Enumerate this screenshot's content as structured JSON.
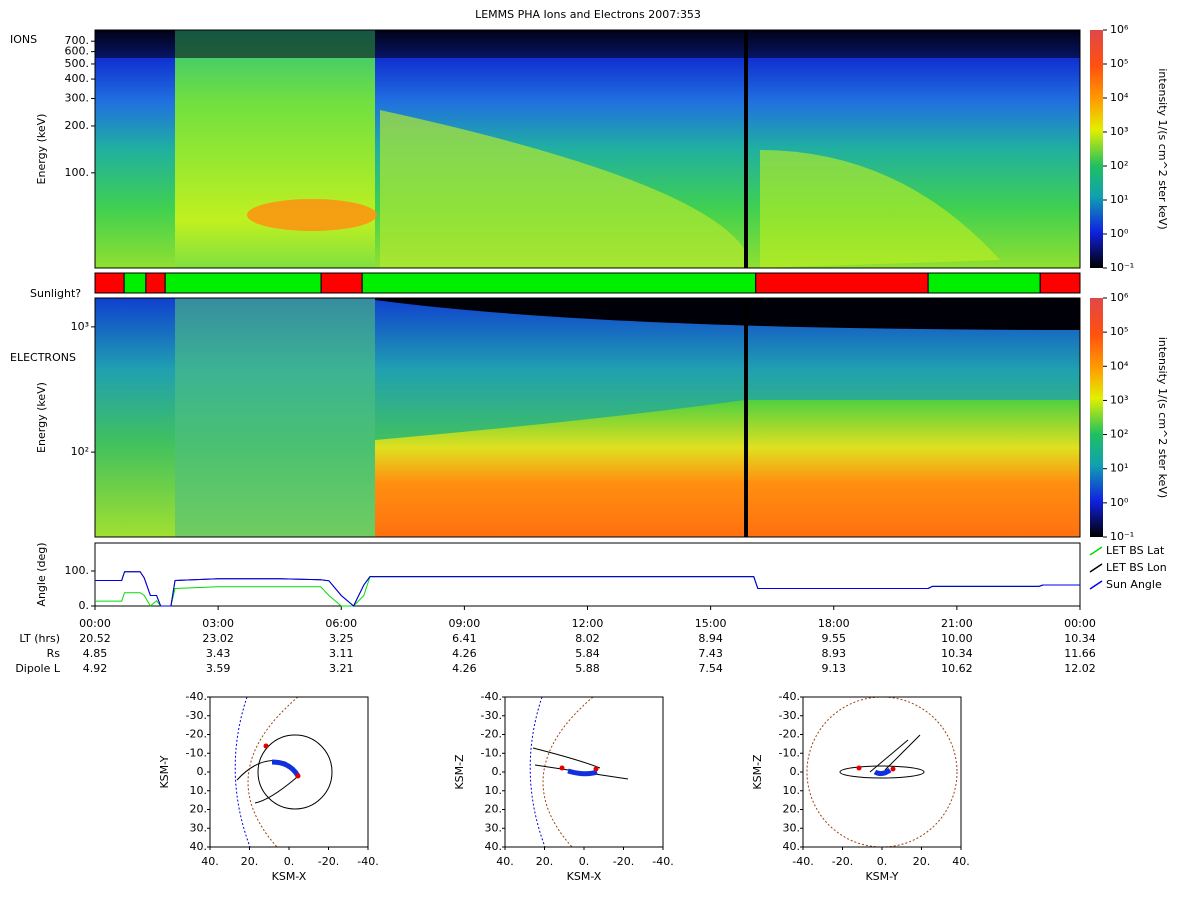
{
  "chart_data": [
    {
      "type": "spectrogram",
      "title": "LEMMS PHA Ions and Electrons  2007:353",
      "label": "IONS",
      "ylabel": "Energy (keV)",
      "log": true,
      "ylim": [
        24.5,
        826
      ],
      "yticks": [
        {
          "value": 100,
          "label": "100."
        },
        {
          "value": 200,
          "label": "200."
        },
        {
          "value": 300,
          "label": "300."
        },
        {
          "value": 400,
          "label": "400."
        },
        {
          "value": 500,
          "label": "500."
        },
        {
          "value": 600,
          "label": "600."
        },
        {
          "value": 700,
          "label": "700."
        }
      ],
      "colorbar": {
        "label": "intensity 1/(s cm^2 ster keV)",
        "log": true,
        "lim": [
          0.1,
          1000000
        ],
        "ticks": [
          {
            "value": 0.1,
            "label": "10⁻¹"
          },
          {
            "value": 1,
            "label": "10⁰"
          },
          {
            "value": 10,
            "label": "10¹"
          },
          {
            "value": 100,
            "label": "10²"
          },
          {
            "value": 1000,
            "label": "10³"
          },
          {
            "value": 10000,
            "label": "10⁴"
          },
          {
            "value": 100000,
            "label": "10⁵"
          },
          {
            "value": 1000000,
            "label": "10⁶"
          }
        ]
      }
    },
    {
      "type": "timebar",
      "label": "Sunlight?",
      "xlim": [
        0,
        24
      ],
      "segments": [
        {
          "start": 0,
          "end": 0.71,
          "color": "#ff0000"
        },
        {
          "start": 0.71,
          "end": 1.24,
          "color": "#00ee00"
        },
        {
          "start": 1.24,
          "end": 1.71,
          "color": "#ff0000"
        },
        {
          "start": 1.71,
          "end": 5.51,
          "color": "#00ee00"
        },
        {
          "start": 5.51,
          "end": 6.51,
          "color": "#ff0000"
        },
        {
          "start": 6.51,
          "end": 16.1,
          "color": "#00ee00"
        },
        {
          "start": 16.1,
          "end": 20.3,
          "color": "#ff0000"
        },
        {
          "start": 20.3,
          "end": 23.03,
          "color": "#00ee00"
        },
        {
          "start": 23.03,
          "end": 24,
          "color": "#ff0000"
        }
      ]
    },
    {
      "type": "spectrogram",
      "label": "ELECTRONS",
      "ylabel": "Energy (keV)",
      "log": true,
      "ylim": [
        21,
        1700
      ],
      "yticks": [
        {
          "value": 100,
          "label": "10²"
        },
        {
          "value": 1000,
          "label": "10³"
        }
      ],
      "colorbar": {
        "label": "intensity 1/(s cm^2 ster keV)",
        "log": true,
        "lim": [
          0.1,
          1000000
        ],
        "ticks": [
          {
            "value": 0.1,
            "label": "10⁻¹"
          },
          {
            "value": 1,
            "label": "10⁰"
          },
          {
            "value": 10,
            "label": "10¹"
          },
          {
            "value": 100,
            "label": "10²"
          },
          {
            "value": 1000,
            "label": "10³"
          },
          {
            "value": 10000,
            "label": "10⁴"
          },
          {
            "value": 100000,
            "label": "10⁵"
          },
          {
            "value": 1000000,
            "label": "10⁶"
          }
        ]
      }
    },
    {
      "type": "line",
      "ylabel": "Angle (deg)",
      "xlim": [
        0,
        24
      ],
      "ylim": [
        0,
        180
      ],
      "yticks": [
        {
          "value": 0,
          "label": "0."
        },
        {
          "value": 100,
          "label": "100."
        }
      ],
      "xticks": [
        {
          "value": 0,
          "label": "00:00"
        },
        {
          "value": 3,
          "label": "03:00"
        },
        {
          "value": 6,
          "label": "06:00"
        },
        {
          "value": 9,
          "label": "09:00"
        },
        {
          "value": 12,
          "label": "12:00"
        },
        {
          "value": 15,
          "label": "15:00"
        },
        {
          "value": 18,
          "label": "18:00"
        },
        {
          "value": 21,
          "label": "21:00"
        },
        {
          "value": 24,
          "label": "00:00"
        }
      ],
      "legend": "right",
      "x": [
        0,
        0.65,
        0.72,
        1.1,
        1.2,
        1.35,
        1.5,
        1.6,
        1.85,
        1.95,
        3,
        4.5,
        5.5,
        5.7,
        6.0,
        6.3,
        6.55,
        6.7,
        7,
        16.05,
        16.15,
        20.3,
        20.4,
        23.0,
        23.1,
        24
      ],
      "series": [
        {
          "name": "LET BS Lat",
          "color": "#00dd00",
          "values": [
            14,
            14,
            38,
            38,
            30,
            0,
            15,
            0,
            0,
            50,
            55,
            55,
            55,
            30,
            0,
            0,
            30,
            84,
            84,
            84,
            50,
            50,
            56,
            56,
            60,
            60
          ]
        },
        {
          "name": "LET BS Lon",
          "color": "#000000",
          "values": [
            73,
            73,
            98,
            98,
            80,
            30,
            30,
            0,
            0,
            73,
            78,
            78,
            75,
            72,
            30,
            0,
            60,
            84,
            84,
            84,
            50,
            50,
            56,
            56,
            60,
            60
          ]
        },
        {
          "name": "Sun Angle",
          "color": "#0000ee",
          "values": [
            73,
            73,
            98,
            98,
            80,
            30,
            30,
            0,
            0,
            73,
            78,
            78,
            75,
            72,
            30,
            0,
            60,
            84,
            84,
            84,
            50,
            50,
            56,
            56,
            60,
            60
          ]
        }
      ],
      "ephemeris": [
        {
          "name": "LT (hrs)",
          "values": [
            "20.52",
            "23.02",
            "3.25",
            "6.41",
            "8.02",
            "8.94",
            "9.55",
            "10.00",
            "10.34"
          ]
        },
        {
          "name": "Rs",
          "values": [
            "4.85",
            "3.43",
            "3.11",
            "4.26",
            "5.84",
            "7.43",
            "8.93",
            "10.34",
            "11.66"
          ]
        },
        {
          "name": "Dipole L",
          "values": [
            "4.92",
            "3.59",
            "3.21",
            "4.26",
            "5.88",
            "7.54",
            "9.13",
            "10.62",
            "12.02"
          ]
        }
      ]
    },
    {
      "type": "orbit",
      "xlabel": "KSM-X",
      "ylabel": "KSM-Y",
      "xlim": [
        40,
        -40
      ],
      "ylim": [
        40,
        -40
      ],
      "xticks": [
        {
          "value": 40,
          "label": "40."
        },
        {
          "value": 20,
          "label": "20."
        },
        {
          "value": 0,
          "label": "0."
        },
        {
          "value": -20,
          "label": "-20."
        },
        {
          "value": -40,
          "label": "-40."
        }
      ],
      "yticks": [
        {
          "value": -40,
          "label": "-40."
        },
        {
          "value": -30,
          "label": "-30."
        },
        {
          "value": -20,
          "label": "-20."
        },
        {
          "value": -10,
          "label": "-10."
        },
        {
          "value": 0,
          "label": "0."
        },
        {
          "value": 10,
          "label": "10."
        },
        {
          "value": 20,
          "label": "20."
        },
        {
          "value": 30,
          "label": "30."
        },
        {
          "value": 40,
          "label": "40."
        }
      ]
    },
    {
      "type": "orbit",
      "xlabel": "KSM-X",
      "ylabel": "KSM-Z",
      "xlim": [
        40,
        -40
      ],
      "ylim": [
        40,
        -40
      ],
      "xticks": [
        {
          "value": 40,
          "label": "40."
        },
        {
          "value": 20,
          "label": "20."
        },
        {
          "value": 0,
          "label": "0."
        },
        {
          "value": -20,
          "label": "-20."
        },
        {
          "value": -40,
          "label": "-40."
        }
      ],
      "yticks": [
        {
          "value": -40,
          "label": "-40."
        },
        {
          "value": -30,
          "label": "-30."
        },
        {
          "value": -20,
          "label": "-20."
        },
        {
          "value": -10,
          "label": "-10."
        },
        {
          "value": 0,
          "label": "0."
        },
        {
          "value": 10,
          "label": "10."
        },
        {
          "value": 20,
          "label": "20."
        },
        {
          "value": 30,
          "label": "30."
        },
        {
          "value": 40,
          "label": "40."
        }
      ]
    },
    {
      "type": "orbit",
      "xlabel": "KSM-Y",
      "ylabel": "KSM-Z",
      "xlim": [
        -40,
        40
      ],
      "ylim": [
        40,
        -40
      ],
      "xticks": [
        {
          "value": -40,
          "label": "-40."
        },
        {
          "value": -20,
          "label": "-20."
        },
        {
          "value": 0,
          "label": "0."
        },
        {
          "value": 20,
          "label": "20."
        },
        {
          "value": 40,
          "label": "40."
        }
      ],
      "yticks": [
        {
          "value": -40,
          "label": "-40."
        },
        {
          "value": -30,
          "label": "-30."
        },
        {
          "value": -20,
          "label": "-20."
        },
        {
          "value": -10,
          "label": "-10."
        },
        {
          "value": 0,
          "label": "0."
        },
        {
          "value": 10,
          "label": "10."
        },
        {
          "value": 20,
          "label": "20."
        },
        {
          "value": 30,
          "label": "30."
        },
        {
          "value": 40,
          "label": "40."
        }
      ]
    }
  ]
}
